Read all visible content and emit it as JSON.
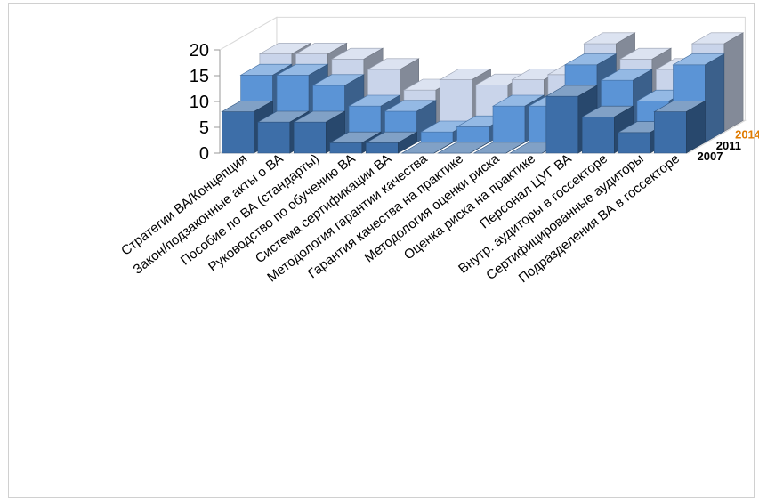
{
  "chart_data": {
    "type": "bar",
    "variant": "3d-column",
    "title": "",
    "xlabel": "",
    "ylabel": "",
    "ylim": [
      0,
      20
    ],
    "yticks": [
      0,
      5,
      10,
      15,
      20
    ],
    "grid": false,
    "categories": [
      "Стратегии ВА/Концепция",
      "Закон/подзаконные акты о ВА",
      "Пособие по ВА (стандарты)",
      "Руководство по обучению ВА",
      "Система сертификации ВА",
      "Методология гарантии качества",
      "Гарантия качества на практике",
      "Методология оценки риска",
      "Оценка риска на практике",
      "Персонал ЦУГ ВА",
      "Внутр. аудиторы в госсекторе",
      "Сертифицированные аудиторы",
      "Подразделения ВА в госсекторе"
    ],
    "series": [
      {
        "name": "2007",
        "color": "#3d6ea8",
        "values": [
          8,
          6,
          6,
          2,
          2,
          0,
          0,
          0,
          0,
          11,
          7,
          4,
          8
        ]
      },
      {
        "name": "2011",
        "color": "#5b94d6",
        "values": [
          13,
          13,
          11,
          7,
          6,
          2,
          3,
          7,
          7,
          15,
          12,
          8,
          15
        ]
      },
      {
        "name": "2014",
        "color": "#c9d4ea",
        "labelColor": "#e07b00",
        "values": [
          15,
          15,
          14,
          12,
          8,
          10,
          9,
          10,
          11,
          17,
          14,
          12,
          17
        ]
      }
    ]
  }
}
